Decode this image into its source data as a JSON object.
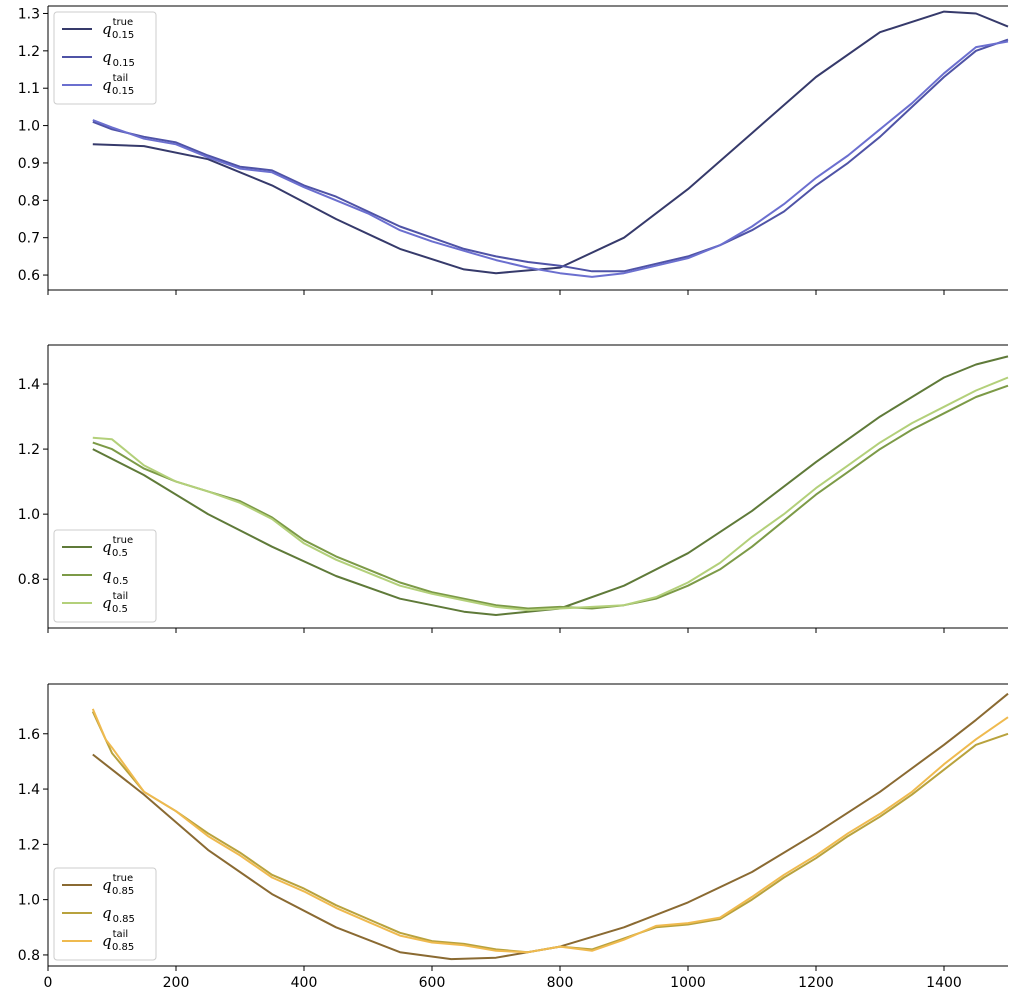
{
  "chart_data": [
    {
      "type": "line",
      "panel": "top",
      "xlim": [
        0,
        1500
      ],
      "ylim": [
        0.56,
        1.32
      ],
      "yticks": [
        0.6,
        0.7,
        0.8,
        0.9,
        1.0,
        1.1,
        1.2,
        1.3
      ],
      "ytick_labels": [
        "0.6",
        "0.7",
        "0.8",
        "0.9",
        "1.0",
        "1.1",
        "1.2",
        "1.3"
      ],
      "xticks": [
        0,
        200,
        400,
        600,
        800,
        1000,
        1200,
        1400
      ],
      "show_xtick_labels": false,
      "legend_position": "top-left",
      "series": [
        {
          "name": "q_true_0.15",
          "legend": {
            "base": "q",
            "sup": "true",
            "sub": "0.15"
          },
          "color": "#363a6b",
          "x": [
            70,
            150,
            250,
            350,
            450,
            550,
            650,
            700,
            800,
            900,
            1000,
            1100,
            1200,
            1300,
            1400,
            1450,
            1500
          ],
          "y": [
            0.95,
            0.945,
            0.91,
            0.84,
            0.75,
            0.67,
            0.615,
            0.605,
            0.62,
            0.7,
            0.83,
            0.98,
            1.13,
            1.25,
            1.305,
            1.3,
            1.265
          ]
        },
        {
          "name": "q_0.15",
          "legend": {
            "base": "q",
            "sub": "0.15"
          },
          "color": "#4f53a6",
          "x": [
            70,
            100,
            150,
            200,
            250,
            300,
            350,
            400,
            450,
            500,
            550,
            600,
            650,
            700,
            750,
            800,
            850,
            900,
            950,
            1000,
            1050,
            1100,
            1150,
            1200,
            1250,
            1300,
            1350,
            1400,
            1450,
            1500
          ],
          "y": [
            1.01,
            0.99,
            0.97,
            0.955,
            0.92,
            0.89,
            0.88,
            0.84,
            0.81,
            0.77,
            0.73,
            0.7,
            0.67,
            0.65,
            0.635,
            0.625,
            0.61,
            0.61,
            0.63,
            0.65,
            0.68,
            0.72,
            0.77,
            0.84,
            0.9,
            0.97,
            1.05,
            1.13,
            1.2,
            1.23
          ]
        },
        {
          "name": "q_tail_0.15",
          "legend": {
            "base": "q",
            "sup": "tail",
            "sub": "0.15"
          },
          "color": "#6b6fcf",
          "x": [
            70,
            100,
            150,
            200,
            250,
            300,
            350,
            400,
            450,
            500,
            550,
            600,
            650,
            700,
            750,
            800,
            850,
            900,
            950,
            1000,
            1050,
            1100,
            1150,
            1200,
            1250,
            1300,
            1350,
            1400,
            1450,
            1500
          ],
          "y": [
            1.015,
            0.995,
            0.965,
            0.95,
            0.915,
            0.885,
            0.875,
            0.835,
            0.8,
            0.765,
            0.72,
            0.69,
            0.665,
            0.64,
            0.62,
            0.605,
            0.595,
            0.605,
            0.625,
            0.645,
            0.68,
            0.73,
            0.79,
            0.86,
            0.92,
            0.99,
            1.06,
            1.14,
            1.21,
            1.225
          ]
        }
      ]
    },
    {
      "type": "line",
      "panel": "middle",
      "xlim": [
        0,
        1500
      ],
      "ylim": [
        0.65,
        1.52
      ],
      "yticks": [
        0.8,
        1.0,
        1.2,
        1.4
      ],
      "ytick_labels": [
        "0.8",
        "1.0",
        "1.2",
        "1.4"
      ],
      "xticks": [
        0,
        200,
        400,
        600,
        800,
        1000,
        1200,
        1400
      ],
      "show_xtick_labels": false,
      "legend_position": "lower-left",
      "series": [
        {
          "name": "q_true_0.5",
          "legend": {
            "base": "q",
            "sup": "true",
            "sub": "0.5"
          },
          "color": "#5f7a39",
          "x": [
            70,
            150,
            250,
            350,
            450,
            550,
            650,
            700,
            800,
            900,
            1000,
            1100,
            1200,
            1300,
            1400,
            1450,
            1500
          ],
          "y": [
            1.2,
            1.12,
            1.0,
            0.9,
            0.81,
            0.74,
            0.7,
            0.69,
            0.71,
            0.78,
            0.88,
            1.01,
            1.16,
            1.3,
            1.42,
            1.46,
            1.485
          ]
        },
        {
          "name": "q_0.5",
          "legend": {
            "base": "q",
            "sub": "0.5"
          },
          "color": "#7c9a47",
          "x": [
            70,
            100,
            150,
            200,
            250,
            300,
            350,
            400,
            450,
            500,
            550,
            600,
            650,
            700,
            750,
            800,
            850,
            900,
            950,
            1000,
            1050,
            1100,
            1150,
            1200,
            1250,
            1300,
            1350,
            1400,
            1450,
            1500
          ],
          "y": [
            1.22,
            1.2,
            1.14,
            1.1,
            1.07,
            1.04,
            0.99,
            0.92,
            0.87,
            0.83,
            0.79,
            0.76,
            0.74,
            0.72,
            0.71,
            0.715,
            0.71,
            0.72,
            0.74,
            0.78,
            0.83,
            0.9,
            0.98,
            1.06,
            1.13,
            1.2,
            1.26,
            1.31,
            1.36,
            1.395
          ]
        },
        {
          "name": "q_tail_0.5",
          "legend": {
            "base": "q",
            "sup": "tail",
            "sub": "0.5"
          },
          "color": "#b3d07a",
          "x": [
            70,
            100,
            150,
            200,
            250,
            300,
            350,
            400,
            450,
            500,
            550,
            600,
            650,
            700,
            750,
            800,
            850,
            900,
            950,
            1000,
            1050,
            1100,
            1150,
            1200,
            1250,
            1300,
            1350,
            1400,
            1450,
            1500
          ],
          "y": [
            1.235,
            1.23,
            1.15,
            1.1,
            1.07,
            1.035,
            0.985,
            0.91,
            0.86,
            0.82,
            0.78,
            0.755,
            0.735,
            0.715,
            0.705,
            0.71,
            0.715,
            0.72,
            0.745,
            0.79,
            0.85,
            0.93,
            1.0,
            1.08,
            1.15,
            1.22,
            1.28,
            1.33,
            1.38,
            1.42
          ]
        }
      ]
    },
    {
      "type": "line",
      "panel": "bottom",
      "xlim": [
        0,
        1500
      ],
      "ylim": [
        0.76,
        1.78
      ],
      "yticks": [
        0.8,
        1.0,
        1.2,
        1.4,
        1.6
      ],
      "ytick_labels": [
        "0.8",
        "1.0",
        "1.2",
        "1.4",
        "1.6"
      ],
      "xticks": [
        0,
        200,
        400,
        600,
        800,
        1000,
        1200,
        1400
      ],
      "xtick_labels": [
        "0",
        "200",
        "400",
        "600",
        "800",
        "1000",
        "1200",
        "1400"
      ],
      "show_xtick_labels": true,
      "legend_position": "lower-left",
      "series": [
        {
          "name": "q_true_0.85",
          "legend": {
            "base": "q",
            "sup": "true",
            "sub": "0.85"
          },
          "color": "#8a6a32",
          "x": [
            70,
            150,
            250,
            350,
            450,
            550,
            630,
            700,
            800,
            900,
            1000,
            1100,
            1200,
            1300,
            1400,
            1450,
            1500
          ],
          "y": [
            1.525,
            1.38,
            1.18,
            1.02,
            0.9,
            0.81,
            0.785,
            0.79,
            0.83,
            0.9,
            0.99,
            1.1,
            1.24,
            1.39,
            1.56,
            1.65,
            1.745
          ]
        },
        {
          "name": "q_0.85",
          "legend": {
            "base": "q",
            "sub": "0.85"
          },
          "color": "#b8a23d",
          "x": [
            70,
            90,
            100,
            150,
            200,
            250,
            300,
            350,
            400,
            450,
            500,
            550,
            600,
            650,
            700,
            750,
            800,
            850,
            900,
            950,
            1000,
            1050,
            1100,
            1150,
            1200,
            1250,
            1300,
            1350,
            1400,
            1450,
            1500
          ],
          "y": [
            1.68,
            1.58,
            1.53,
            1.39,
            1.32,
            1.24,
            1.17,
            1.09,
            1.04,
            0.98,
            0.93,
            0.88,
            0.85,
            0.84,
            0.82,
            0.81,
            0.83,
            0.82,
            0.86,
            0.9,
            0.91,
            0.93,
            1.0,
            1.08,
            1.15,
            1.23,
            1.3,
            1.38,
            1.47,
            1.56,
            1.6
          ]
        },
        {
          "name": "q_tail_0.85",
          "legend": {
            "base": "q",
            "sup": "tail",
            "sub": "0.85"
          },
          "color": "#efba4f",
          "x": [
            70,
            90,
            100,
            150,
            200,
            250,
            300,
            350,
            400,
            450,
            500,
            550,
            600,
            650,
            700,
            750,
            800,
            850,
            900,
            950,
            1000,
            1050,
            1100,
            1150,
            1200,
            1250,
            1300,
            1350,
            1400,
            1450,
            1500
          ],
          "y": [
            1.69,
            1.58,
            1.55,
            1.39,
            1.32,
            1.23,
            1.16,
            1.08,
            1.03,
            0.97,
            0.92,
            0.87,
            0.845,
            0.835,
            0.815,
            0.81,
            0.83,
            0.815,
            0.855,
            0.905,
            0.915,
            0.935,
            1.01,
            1.09,
            1.16,
            1.24,
            1.31,
            1.39,
            1.49,
            1.58,
            1.66
          ]
        }
      ]
    }
  ]
}
